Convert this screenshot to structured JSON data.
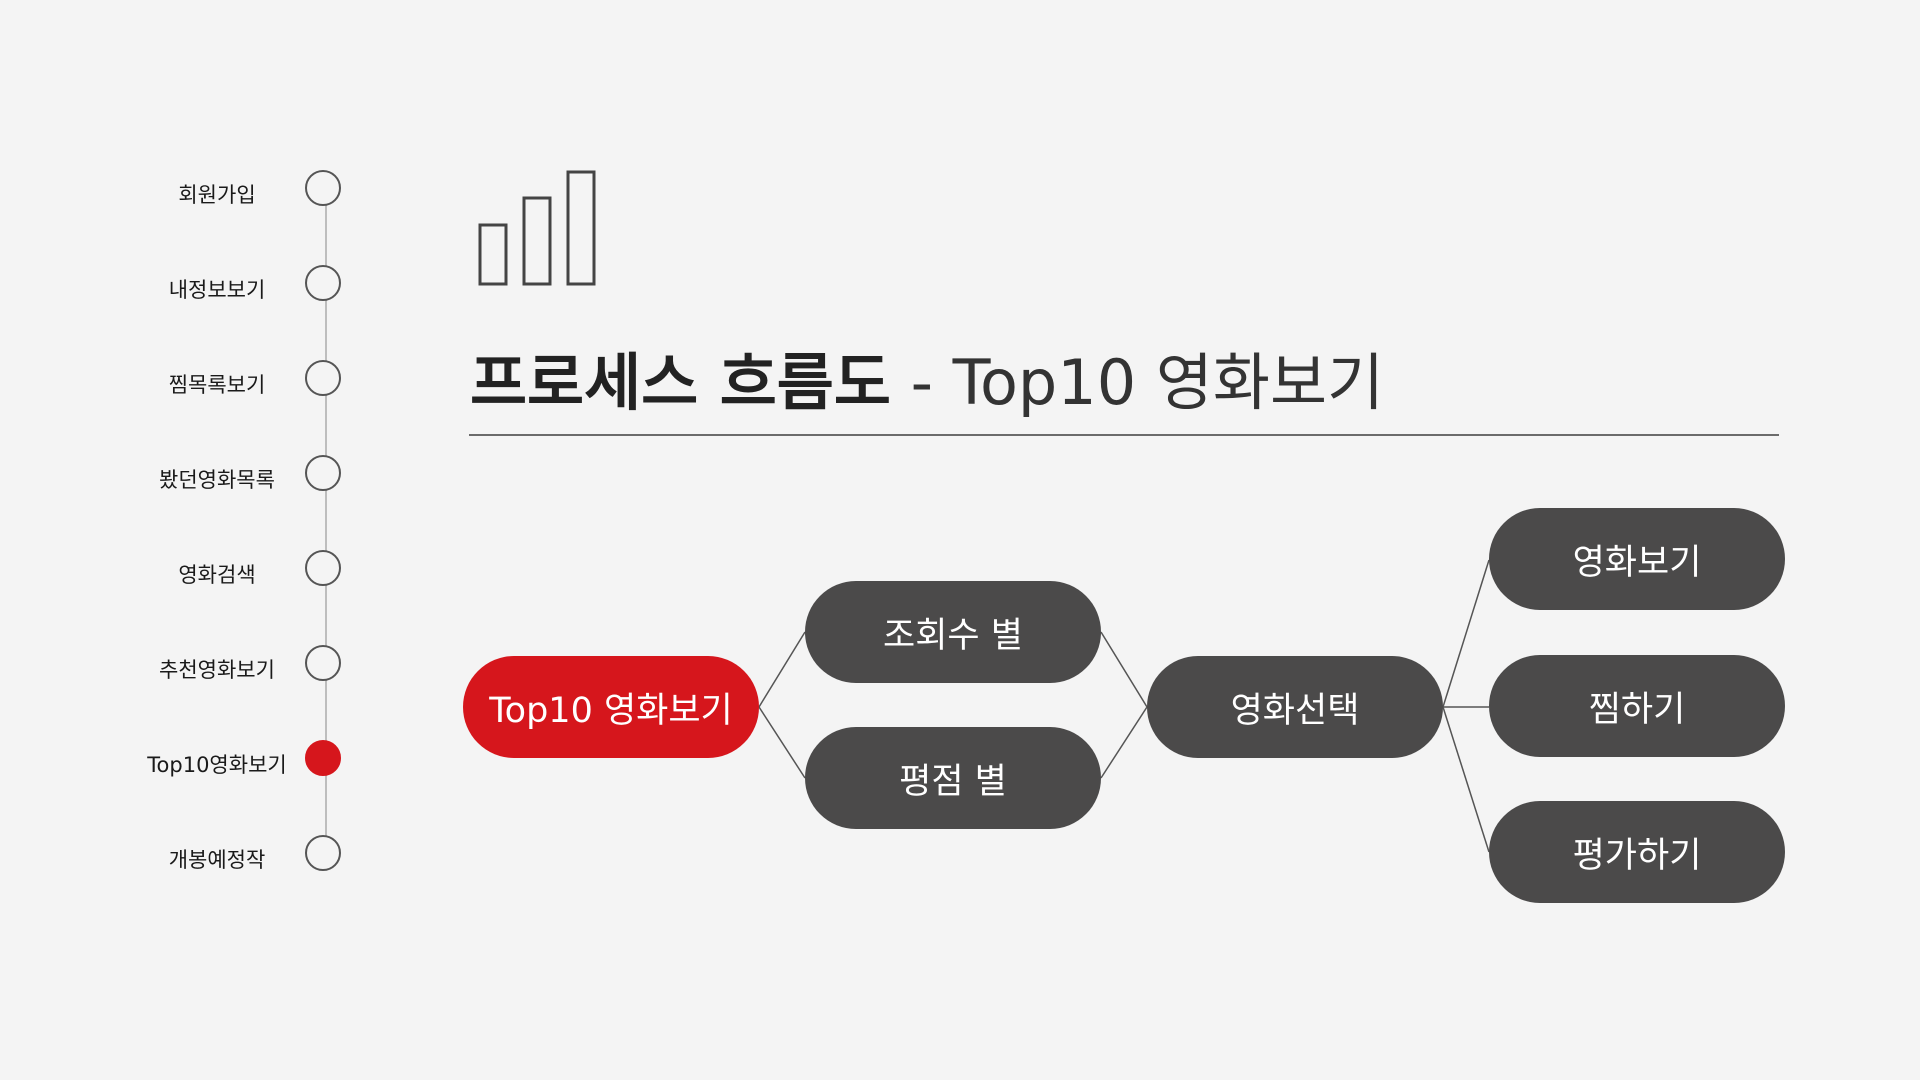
{
  "colors": {
    "accent": "#d6161c",
    "node": "#4b4a4a",
    "background": "#f4f4f4"
  },
  "timeline": {
    "items": [
      {
        "label": "회원가입",
        "active": false
      },
      {
        "label": "내정보보기",
        "active": false
      },
      {
        "label": "찜목록보기",
        "active": false
      },
      {
        "label": "봤던영화목록",
        "active": false
      },
      {
        "label": "영화검색",
        "active": false
      },
      {
        "label": "추천영화보기",
        "active": false
      },
      {
        "label": "Top10영화보기",
        "active": true
      },
      {
        "label": "개봉예정작",
        "active": false
      }
    ]
  },
  "header": {
    "icon": "bar-chart-icon",
    "title_strong": "프로세스 흐름도",
    "title_rest": " - Top10 영화보기"
  },
  "flow": {
    "root": "Top10 영화보기",
    "sort_by_views": "조회수 별",
    "sort_by_rating": "평점 별",
    "select": "영화선택",
    "view_movie": "영화보기",
    "wishlist": "찜하기",
    "rate": "평가하기"
  }
}
